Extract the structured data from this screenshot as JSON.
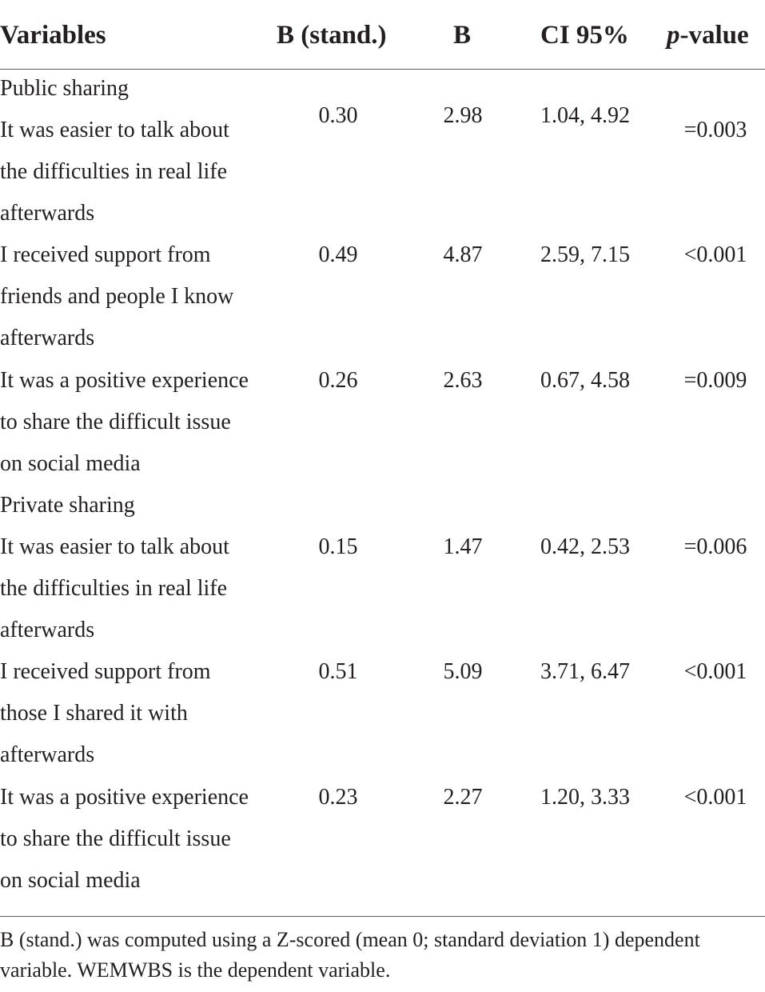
{
  "header": {
    "variables": "Variables",
    "b_stand": "B (stand.)",
    "b": "B",
    "ci": "CI 95%",
    "p_italic": "p",
    "p_rest": "-value"
  },
  "rows": [
    {
      "label": "Public sharing"
    },
    {
      "lines": [
        "It was easier to talk about",
        "the difficulties in real life",
        "afterwards"
      ],
      "b_stand": "0.30",
      "b": "2.98",
      "ci": "1.04, 4.92",
      "p": "=0.003"
    },
    {
      "lines": [
        "I received support from",
        "friends and people I know",
        "afterwards"
      ],
      "b_stand": "0.49",
      "b": "4.87",
      "ci": "2.59, 7.15",
      "p": "<0.001"
    },
    {
      "lines": [
        "It was a positive experience",
        "to share the difficult issue",
        "on social media"
      ],
      "b_stand": "0.26",
      "b": "2.63",
      "ci": "0.67, 4.58",
      "p": "=0.009"
    },
    {
      "label": "Private sharing"
    },
    {
      "lines": [
        "It was easier to talk about",
        "the difficulties in real life",
        "afterwards"
      ],
      "b_stand": "0.15",
      "b": "1.47",
      "ci": "0.42, 2.53",
      "p": "=0.006"
    },
    {
      "lines": [
        "I received support from",
        "those I shared it with",
        "afterwards"
      ],
      "b_stand": "0.51",
      "b": "5.09",
      "ci": "3.71, 6.47",
      "p": "<0.001"
    },
    {
      "lines": [
        "It was a positive experience",
        "to share the difficult issue",
        "on social media"
      ],
      "b_stand": "0.23",
      "b": "2.27",
      "ci": "1.20, 3.33",
      "p": "<0.001"
    }
  ],
  "footnote": {
    "line1": "B (stand.) was computed using a Z-scored (mean 0; standard deviation 1) dependent",
    "line2": "variable. WEMWBS is the dependent variable."
  }
}
